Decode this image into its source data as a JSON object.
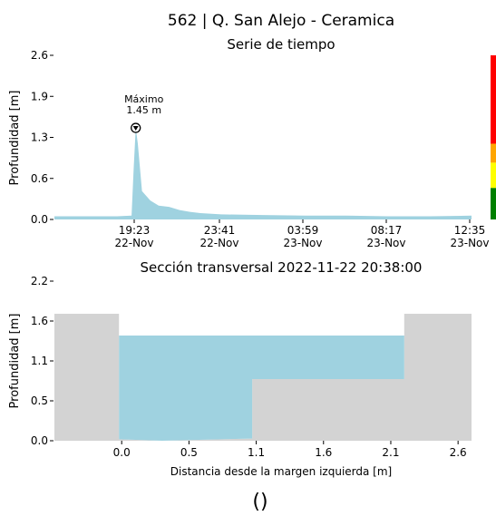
{
  "title": "562 | Q. San Alejo - Ceramica",
  "footer": "()",
  "chart_data": [
    {
      "type": "area",
      "title": "Serie de tiempo",
      "xlabel": "",
      "ylabel": "Profundidad [m]",
      "ylim": [
        0,
        2.6
      ],
      "yticks": [
        "0.0",
        "0.6",
        "1.3",
        "1.9",
        "2.6"
      ],
      "xticks": [
        {
          "time": "19:23",
          "date": "22-Nov"
        },
        {
          "time": "23:41",
          "date": "22-Nov"
        },
        {
          "time": "03:59",
          "date": "23-Nov"
        },
        {
          "time": "08:17",
          "date": "23-Nov"
        },
        {
          "time": "12:35",
          "date": "23-Nov"
        }
      ],
      "x_unit": "hours since 2022-11-22 16:30",
      "series": [
        {
          "x": [
            0,
            1,
            2,
            3,
            3.7,
            3.8,
            3.9,
            4.0,
            4.2,
            4.6,
            5.0,
            5.5,
            6.0,
            6.5,
            7.0,
            8.0,
            10.0,
            12.0,
            14.0,
            16.0,
            18.0,
            20.0
          ],
          "values": [
            0.05,
            0.05,
            0.05,
            0.05,
            0.06,
            0.8,
            1.45,
            1.2,
            0.45,
            0.3,
            0.22,
            0.2,
            0.15,
            0.12,
            0.1,
            0.08,
            0.07,
            0.06,
            0.06,
            0.05,
            0.05,
            0.06
          ]
        }
      ],
      "annotation": {
        "label_line1": "Máximo",
        "label_line2": "1.45 m",
        "x": 3.9,
        "y": 1.45
      },
      "threshold_bar": [
        {
          "from": 0,
          "to": 0.5,
          "color": "#008000"
        },
        {
          "from": 0.5,
          "to": 0.9,
          "color": "#ffff00"
        },
        {
          "from": 0.9,
          "to": 1.2,
          "color": "#ffa500"
        },
        {
          "from": 1.2,
          "to": 2.6,
          "color": "#ff0000"
        }
      ],
      "fill_color": "#9fd2e0",
      "grid": false
    },
    {
      "type": "area",
      "title": "Sección transversal 2022-11-22 20:38:00",
      "xlabel": "Distancia desde la margen izquierda [m]",
      "ylabel": "Profundidad [m]",
      "xlim": [
        -0.5,
        2.6
      ],
      "ylim": [
        0,
        2.2
      ],
      "xticks": [
        "0.0",
        "0.5",
        "1.1",
        "1.6",
        "2.1",
        "2.6"
      ],
      "yticks": [
        "0.0",
        "0.5",
        "1.1",
        "1.6",
        "2.2"
      ],
      "water_level": 1.45,
      "bed_profile": {
        "x": [
          -0.5,
          -0.02,
          -0.02,
          0.3,
          0.97,
          0.97,
          2.1,
          2.1,
          2.6
        ],
        "y": [
          1.75,
          1.75,
          0.02,
          0.0,
          0.03,
          0.85,
          0.85,
          1.75,
          1.75
        ]
      },
      "water_color": "#9fd2e0",
      "ground_color": "#d3d3d3",
      "grid": false
    }
  ]
}
